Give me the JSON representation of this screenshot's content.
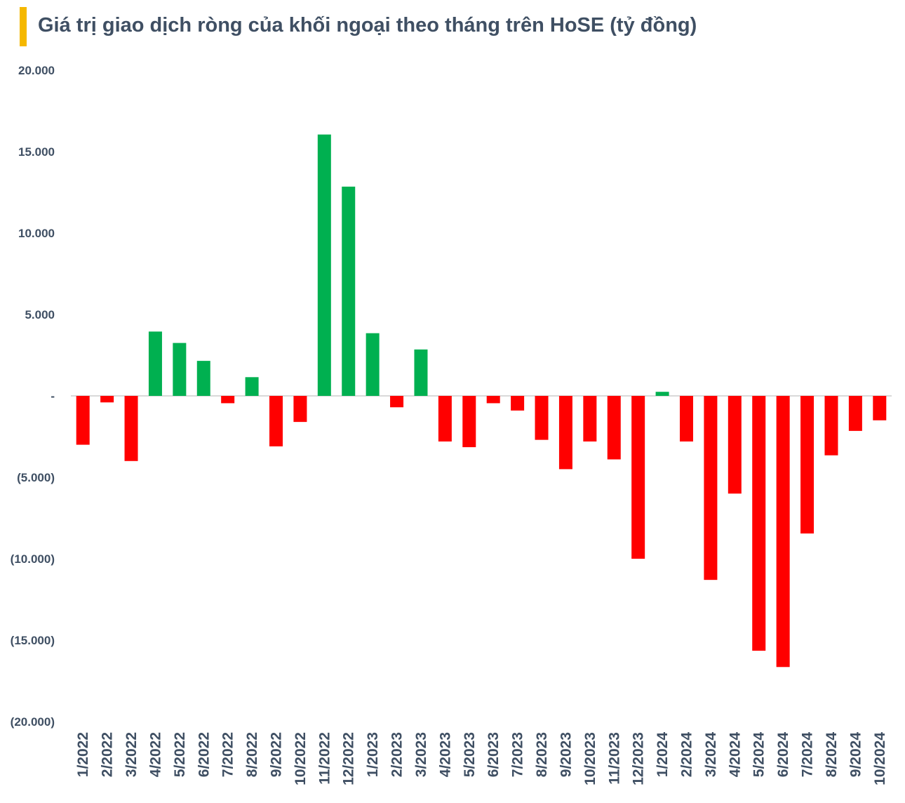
{
  "chart_data": {
    "type": "bar",
    "title": "Giá trị giao dịch ròng của khối ngoại theo tháng trên HoSE (tỷ đồng)",
    "xlabel": "",
    "ylabel": "",
    "ylim": [
      -20000,
      20000
    ],
    "yticks": [
      20000,
      15000,
      10000,
      5000,
      0,
      -5000,
      -10000,
      -15000,
      -20000
    ],
    "ytick_labels": [
      "20.000",
      "15.000",
      "10.000",
      "5.000",
      "-",
      "(5.000)",
      "(10.000)",
      "(15.000)",
      "(20.000)"
    ],
    "grid": false,
    "legend": "none",
    "colors": {
      "positive": "#00b050",
      "negative": "#ff0000",
      "axis": "#d9d9d9",
      "text": "#3f4f63",
      "accent": "#f5b800"
    },
    "categories": [
      "1/2022",
      "2/2022",
      "3/2022",
      "4/2022",
      "5/2022",
      "6/2022",
      "7/2022",
      "8/2022",
      "9/2022",
      "10/2022",
      "11/2022",
      "12/2022",
      "1/2023",
      "2/2023",
      "3/2023",
      "4/2023",
      "5/2023",
      "6/2023",
      "7/2023",
      "8/2023",
      "9/2023",
      "10/2023",
      "11/2023",
      "12/2023",
      "1/2024",
      "2/2024",
      "3/2024",
      "4/2024",
      "5/2024",
      "6/2024",
      "7/2024",
      "8/2024",
      "9/2024",
      "10/2024"
    ],
    "values": [
      -3000,
      -400,
      -4000,
      3950,
      3250,
      2150,
      -450,
      1150,
      -3100,
      -1600,
      16050,
      12850,
      3850,
      -700,
      2850,
      -2800,
      -3150,
      -450,
      -900,
      -2700,
      -4500,
      -2800,
      -3900,
      -10000,
      250,
      -2800,
      -11300,
      -6000,
      -15650,
      -16650,
      -8450,
      -3650,
      -2150,
      -1500
    ]
  }
}
